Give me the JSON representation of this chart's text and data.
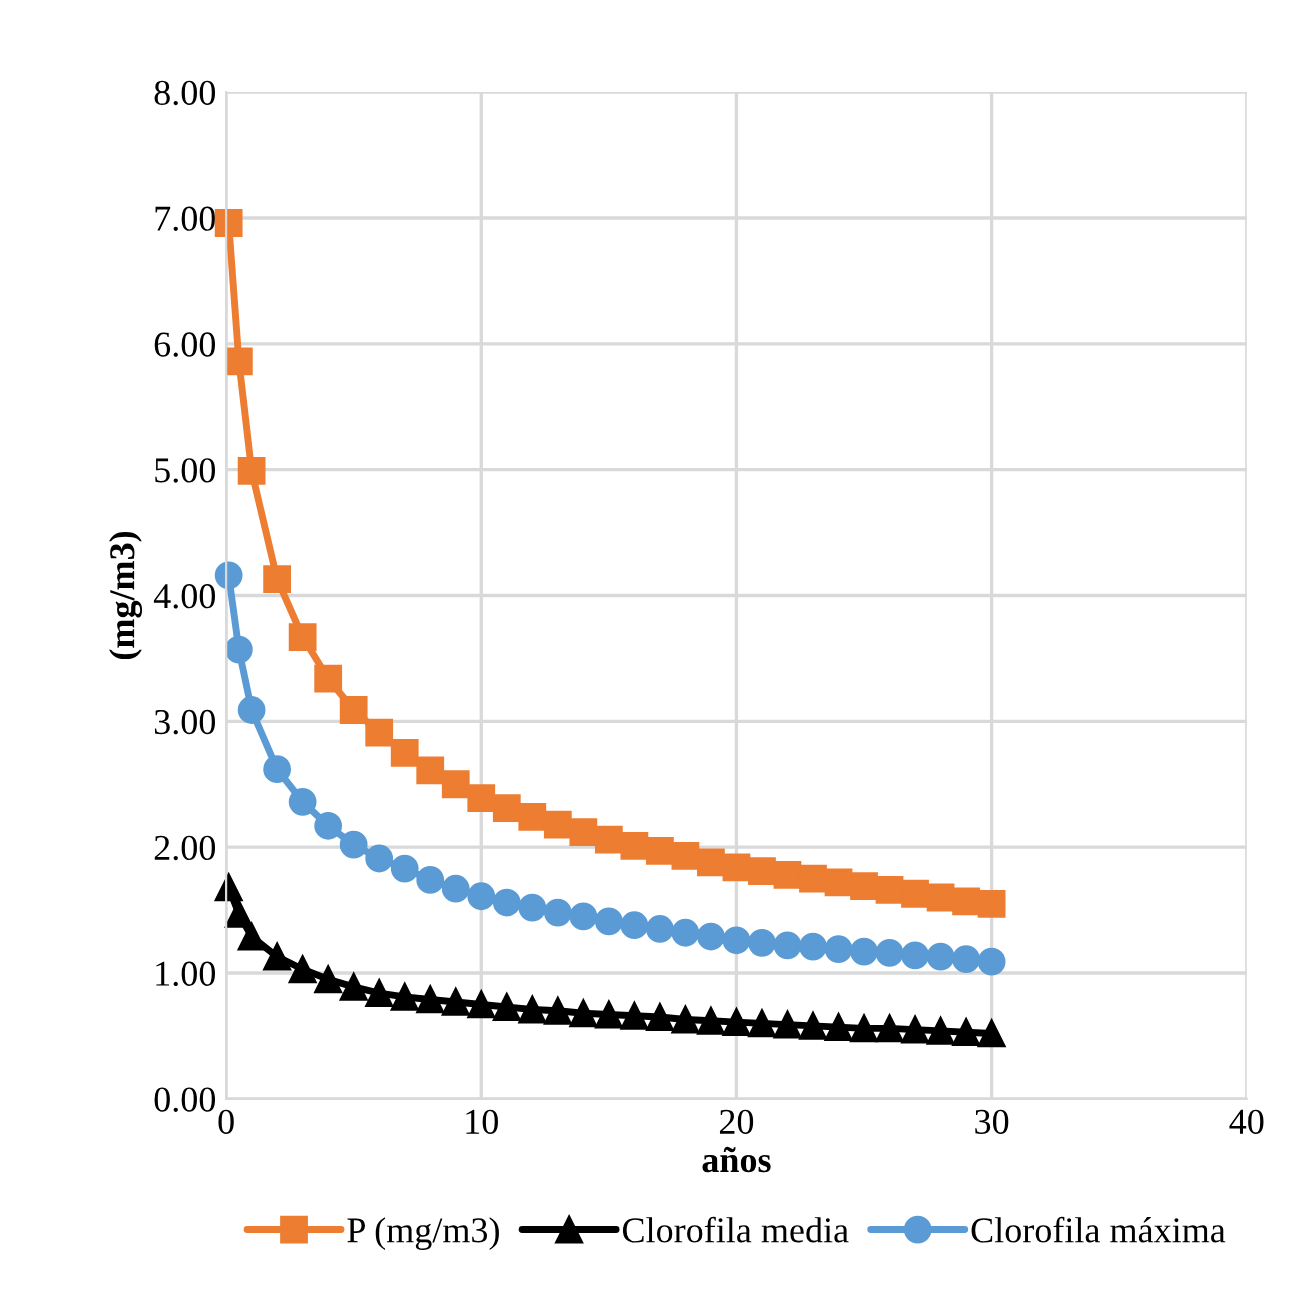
{
  "chart_data": {
    "type": "line",
    "xlabel": "años",
    "ylabel": "(mg/m3)",
    "x": [
      0.1,
      0.5,
      1,
      2,
      3,
      4,
      5,
      6,
      7,
      8,
      9,
      10,
      11,
      12,
      13,
      14,
      15,
      16,
      17,
      18,
      19,
      20,
      21,
      22,
      23,
      24,
      25,
      26,
      27,
      28,
      29,
      30
    ],
    "series": [
      {
        "name": "P (mg/m3)",
        "color": "#ed7d31",
        "marker": "square",
        "values": [
          6.96,
          5.86,
          4.99,
          4.13,
          3.67,
          3.34,
          3.09,
          2.91,
          2.75,
          2.61,
          2.5,
          2.39,
          2.31,
          2.24,
          2.18,
          2.12,
          2.06,
          2.01,
          1.97,
          1.93,
          1.88,
          1.84,
          1.81,
          1.78,
          1.75,
          1.72,
          1.69,
          1.66,
          1.63,
          1.6,
          1.57,
          1.55
        ]
      },
      {
        "name": "Clorofila media",
        "color": "#000000",
        "marker": "triangle",
        "values": [
          1.68,
          1.47,
          1.29,
          1.13,
          1.03,
          0.95,
          0.89,
          0.84,
          0.81,
          0.79,
          0.77,
          0.75,
          0.73,
          0.71,
          0.7,
          0.68,
          0.67,
          0.66,
          0.65,
          0.63,
          0.62,
          0.61,
          0.6,
          0.59,
          0.58,
          0.57,
          0.56,
          0.56,
          0.55,
          0.54,
          0.53,
          0.52
        ]
      },
      {
        "name": "Clorofila máxima",
        "color": "#5b9bd5",
        "marker": "circle",
        "values": [
          4.16,
          3.57,
          3.09,
          2.62,
          2.36,
          2.17,
          2.02,
          1.91,
          1.83,
          1.74,
          1.67,
          1.61,
          1.56,
          1.52,
          1.48,
          1.45,
          1.41,
          1.38,
          1.35,
          1.32,
          1.29,
          1.26,
          1.24,
          1.22,
          1.21,
          1.19,
          1.17,
          1.16,
          1.14,
          1.13,
          1.11,
          1.09
        ]
      }
    ],
    "xlim": [
      0,
      40
    ],
    "xticks": [
      0,
      10,
      20,
      30,
      40
    ],
    "ylim": [
      0,
      8
    ],
    "yticks": [
      {
        "value": 0,
        "label": "0.00"
      },
      {
        "value": 1,
        "label": "1.00"
      },
      {
        "value": 2,
        "label": "2.00"
      },
      {
        "value": 3,
        "label": "3.00"
      },
      {
        "value": 4,
        "label": "4.00"
      },
      {
        "value": 5,
        "label": "5.00"
      },
      {
        "value": 6,
        "label": "6.00"
      },
      {
        "value": 7,
        "label": "7.00"
      },
      {
        "value": 8,
        "label": "8.00"
      }
    ],
    "grid": true,
    "legend": "bottom",
    "line_style": "solid"
  }
}
